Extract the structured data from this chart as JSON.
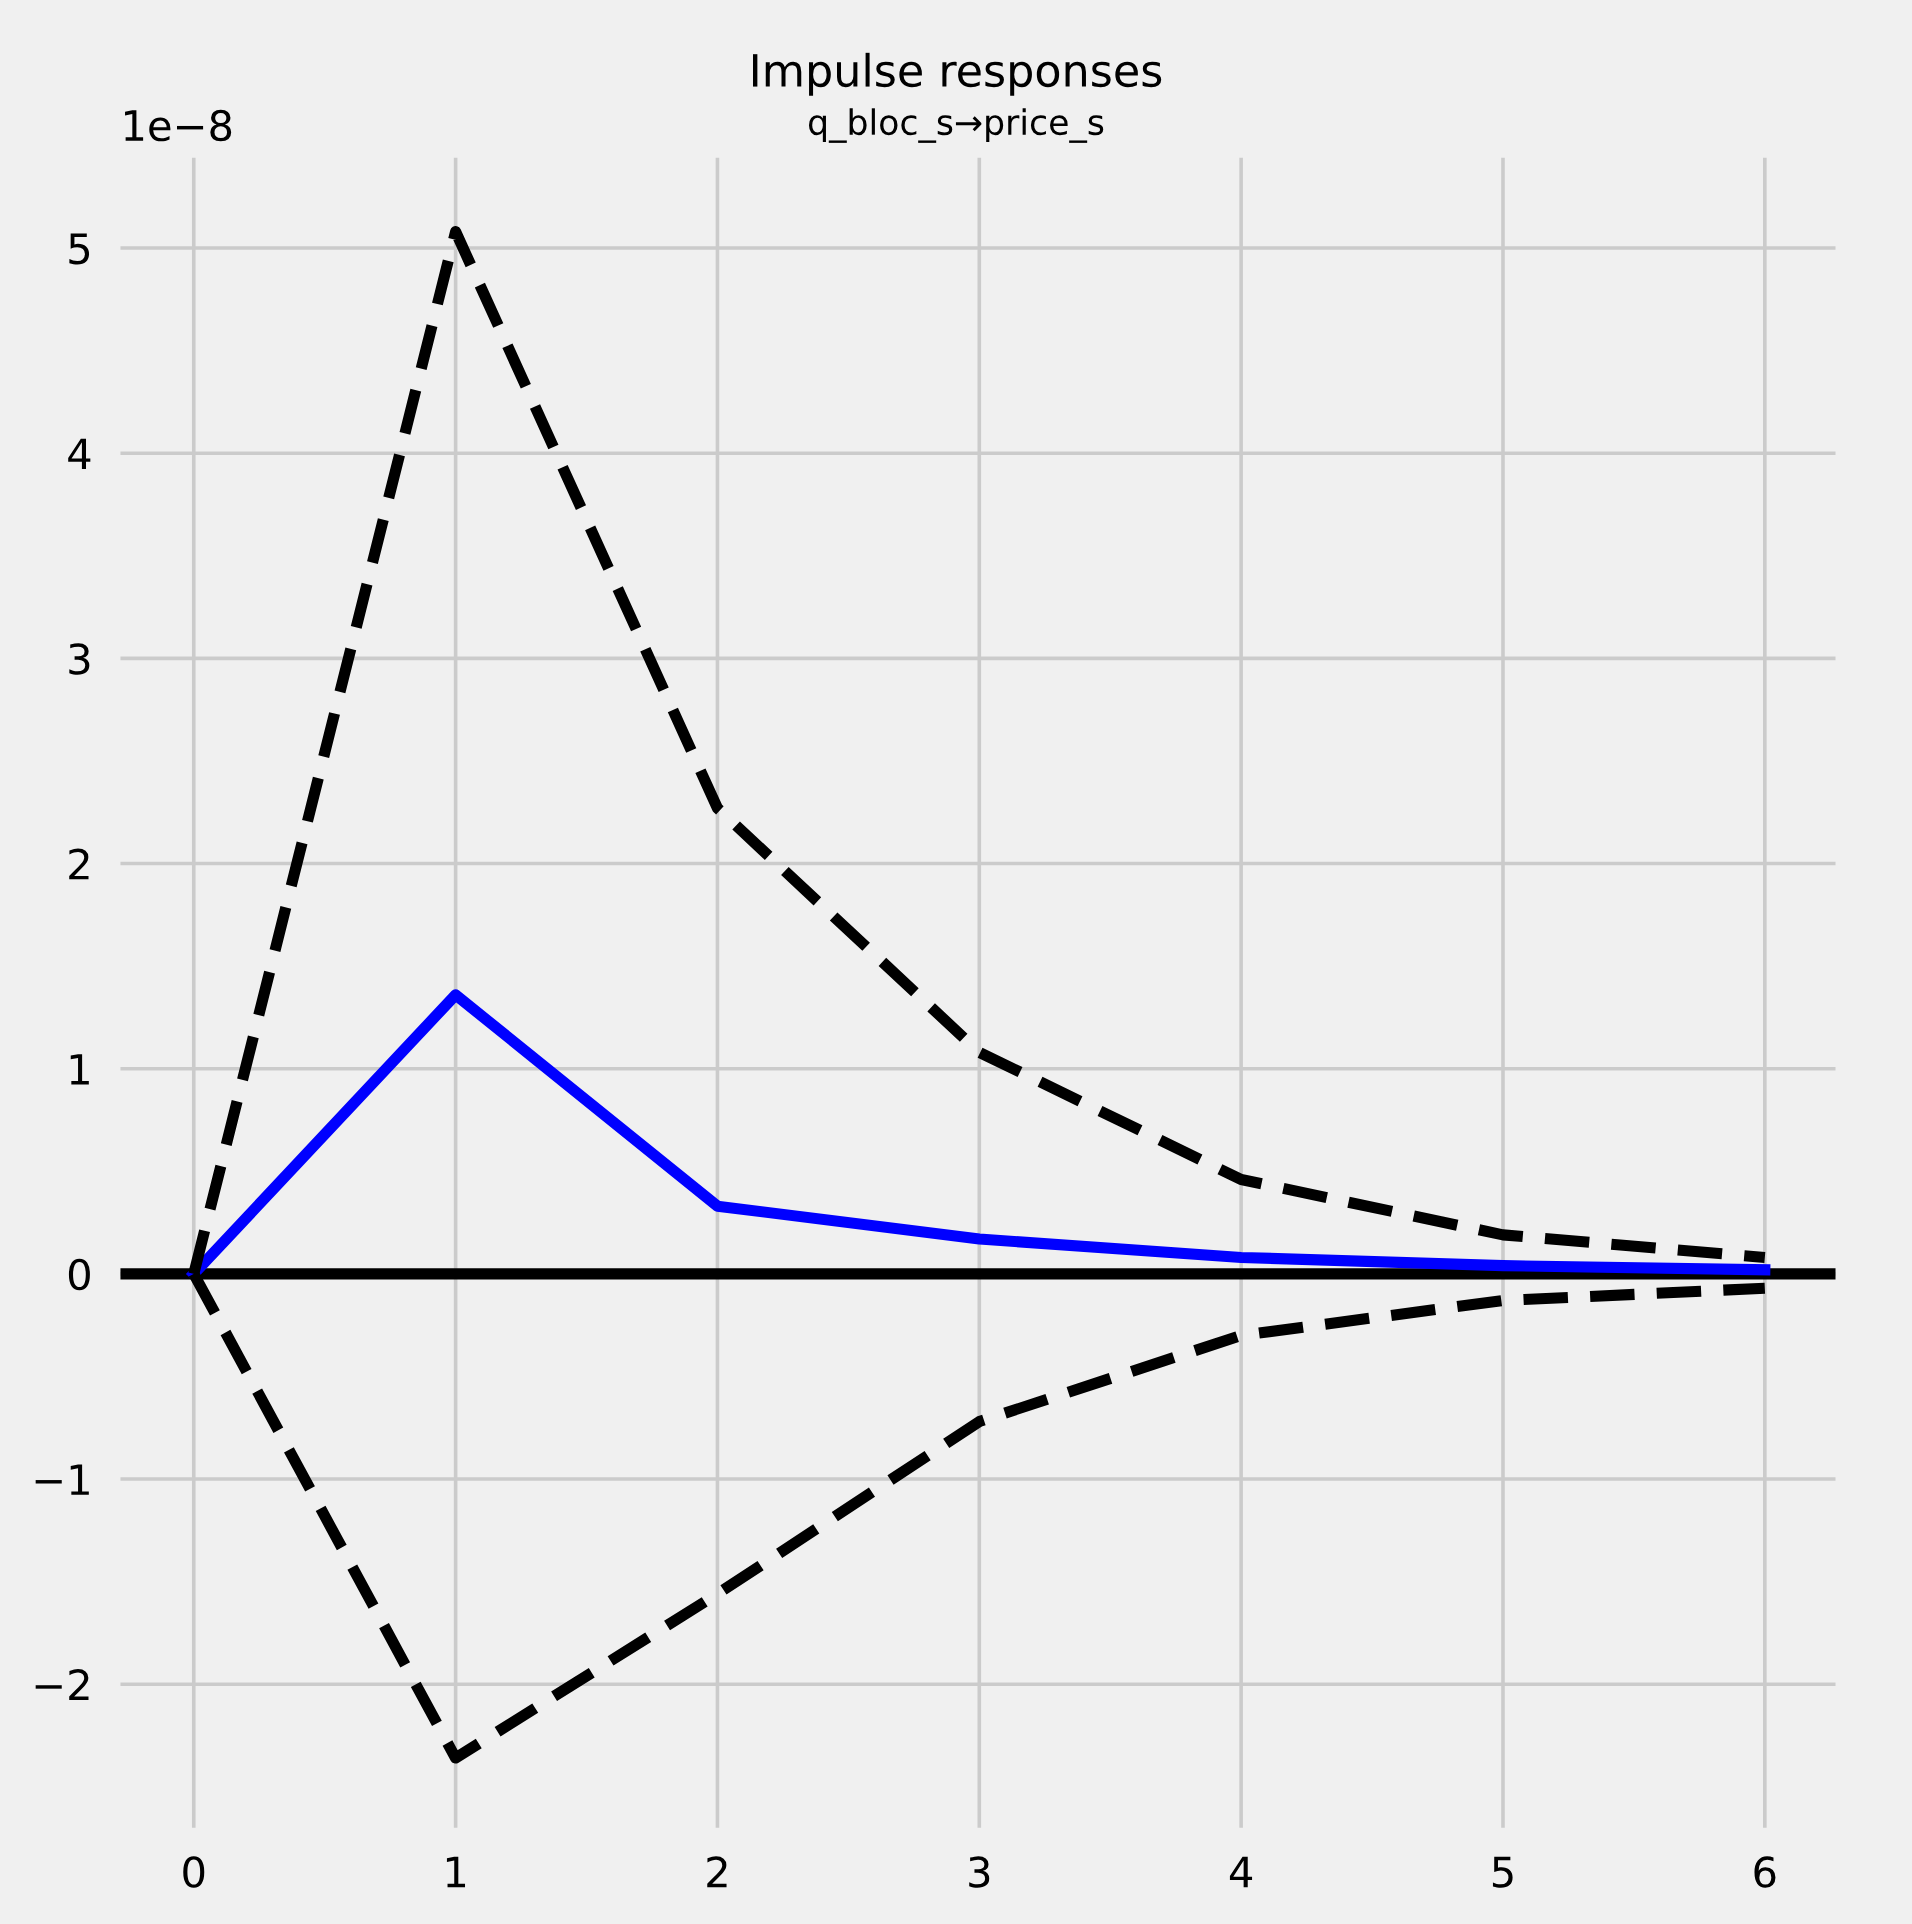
{
  "chart_data": {
    "type": "line",
    "title": "Impulse responses",
    "subtitle": "q_bloc_s→price_s",
    "annotations": [
      "1e−8"
    ],
    "x": [
      0,
      1,
      2,
      3,
      4,
      5,
      6
    ],
    "series": [
      {
        "color": "#0000ff",
        "values": [
          0,
          1.36,
          0.33,
          0.17,
          0.08,
          0.04,
          0.02
        ],
        "line_style": "solid"
      },
      {
        "color": "#000000",
        "values": [
          0,
          5.08,
          2.27,
          1.08,
          0.46,
          0.19,
          0.08
        ],
        "line_style": "dashed"
      },
      {
        "color": "#000000",
        "values": [
          0,
          -2.36,
          -1.56,
          -0.72,
          -0.3,
          -0.13,
          -0.07
        ],
        "line_style": "dashed"
      }
    ],
    "ref_lines": [
      {
        "axis": "y",
        "value": 0,
        "color": "#000000"
      }
    ],
    "xlim": [
      -0.28,
      6.27
    ],
    "xticks": [
      0,
      1,
      2,
      3,
      4,
      5,
      6
    ],
    "ylim": [
      -2.7,
      5.44
    ],
    "yticks": [
      -2,
      -1,
      0,
      1,
      2,
      3,
      4,
      5
    ],
    "grid": true,
    "marker": "none"
  }
}
